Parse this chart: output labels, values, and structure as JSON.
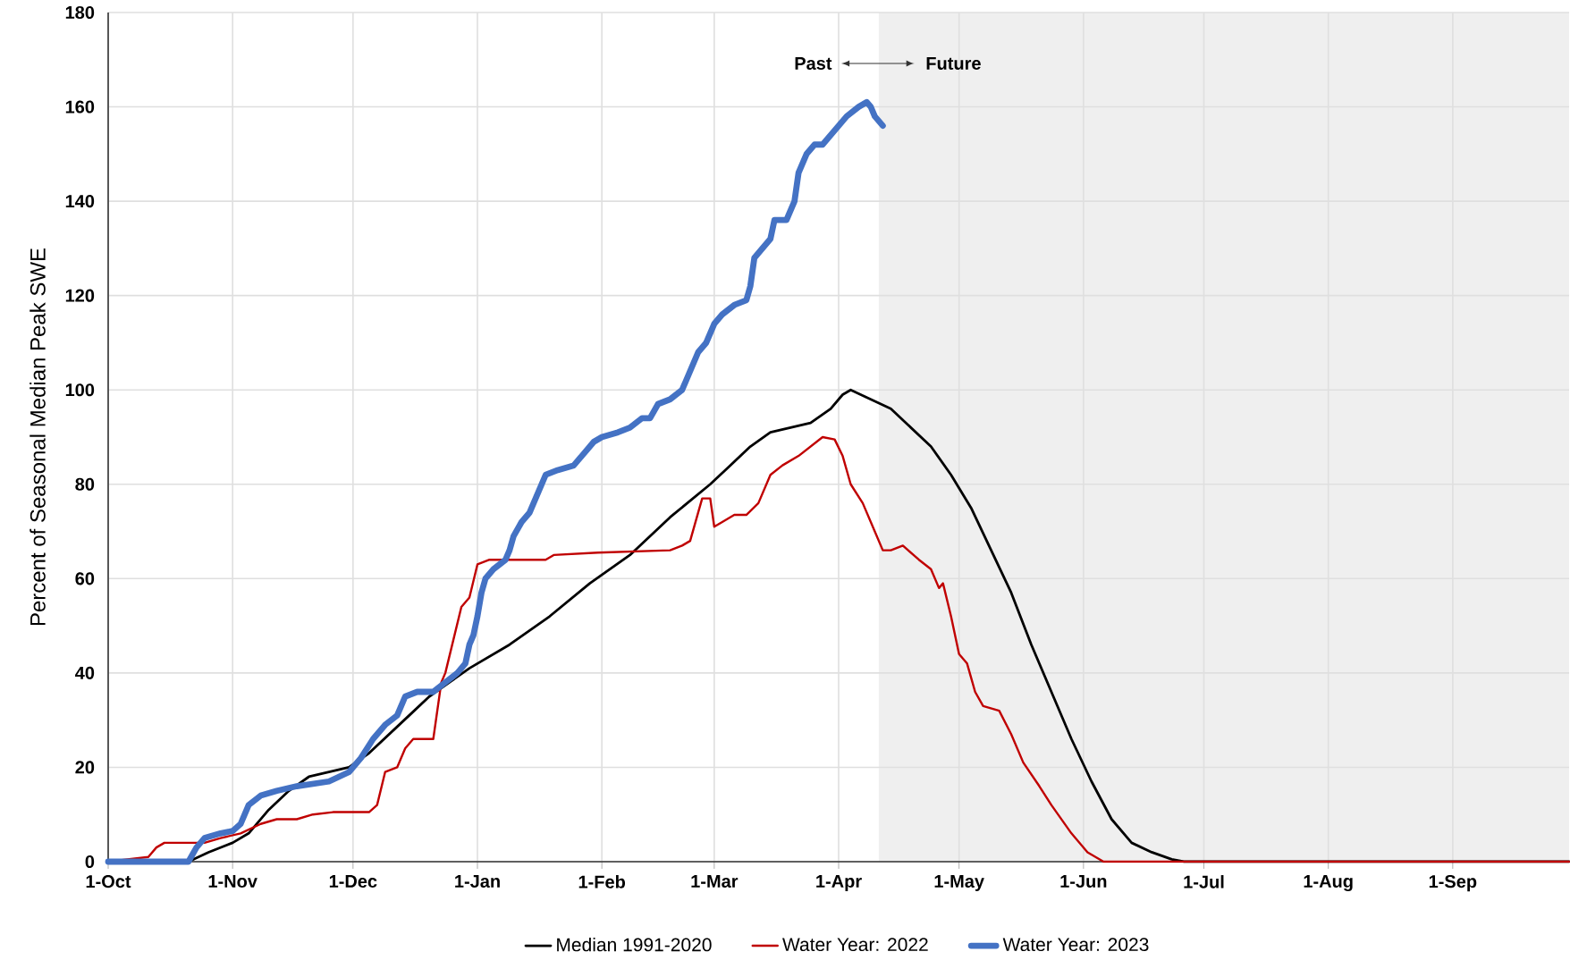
{
  "chart_data": {
    "type": "line",
    "ylabel": "Percent of Seasonal Median Peak SWE",
    "xlim": [
      "2022-10-01",
      "2023-09-30"
    ],
    "ylim": [
      0,
      180
    ],
    "xticks": [
      {
        "value": "2022-10-01",
        "label": "1-Oct"
      },
      {
        "value": "2022-11-01",
        "label": "1-Nov"
      },
      {
        "value": "2022-12-01",
        "label": "1-Dec"
      },
      {
        "value": "2023-01-01",
        "label": "1-Jan"
      },
      {
        "value": "2023-02-01",
        "label": "1-Feb"
      },
      {
        "value": "2023-03-01",
        "label": "1-Mar"
      },
      {
        "value": "2023-04-01",
        "label": "1-Apr"
      },
      {
        "value": "2023-05-01",
        "label": "1-May"
      },
      {
        "value": "2023-06-01",
        "label": "1-Jun"
      },
      {
        "value": "2023-07-01",
        "label": "1-Jul"
      },
      {
        "value": "2023-08-01",
        "label": "1-Aug"
      },
      {
        "value": "2023-09-01",
        "label": "1-Sep"
      }
    ],
    "yticks": [
      0,
      20,
      40,
      60,
      80,
      100,
      120,
      140,
      160,
      180
    ],
    "grid": true,
    "legend": "bottom",
    "marker": "none",
    "line_style": "solid",
    "bands": [
      {
        "axis": "x",
        "from": "2023-04-11",
        "to": "2023-09-30",
        "color": "#efefef"
      }
    ],
    "annotations": [
      "Past",
      "Future"
    ],
    "series": [
      {
        "name": "Median 1991-2020",
        "color": "#000000",
        "x": [
          "2022-10-01",
          "2022-10-21",
          "2022-10-26",
          "2022-11-01",
          "2022-11-05",
          "2022-11-10",
          "2022-11-15",
          "2022-11-20",
          "2022-11-25",
          "2022-11-30",
          "2022-12-05",
          "2022-12-10",
          "2022-12-15",
          "2022-12-20",
          "2022-12-25",
          "2022-12-30",
          "2023-01-01",
          "2023-01-09",
          "2023-01-19",
          "2023-01-29",
          "2023-02-08",
          "2023-02-18",
          "2023-02-28",
          "2023-03-05",
          "2023-03-10",
          "2023-03-15",
          "2023-03-20",
          "2023-03-25",
          "2023-03-30",
          "2023-04-02",
          "2023-04-04",
          "2023-04-09",
          "2023-04-14",
          "2023-04-19",
          "2023-04-24",
          "2023-04-29",
          "2023-05-04",
          "2023-05-09",
          "2023-05-14",
          "2023-05-19",
          "2023-05-24",
          "2023-05-29",
          "2023-06-03",
          "2023-06-08",
          "2023-06-13",
          "2023-06-18",
          "2023-06-23",
          "2023-06-26",
          "2023-09-30"
        ],
        "values": [
          0,
          0,
          2,
          4,
          6,
          11,
          15,
          18,
          19,
          20,
          23,
          27,
          31,
          35,
          38,
          41,
          42,
          46,
          52,
          59,
          65,
          73,
          80,
          84,
          88,
          91,
          92,
          93,
          96,
          99,
          100,
          98,
          96,
          92,
          88,
          82,
          75,
          66,
          57,
          46,
          36,
          26,
          17,
          9,
          4,
          2,
          0.5,
          0,
          0
        ]
      },
      {
        "name": "Water Year: 2022",
        "color": "#c00000",
        "x": [
          "2022-10-01",
          "2022-10-11",
          "2022-10-13",
          "2022-10-15",
          "2022-10-19",
          "2022-10-25",
          "2022-10-29",
          "2022-11-03",
          "2022-11-08",
          "2022-11-12",
          "2022-11-17",
          "2022-11-21",
          "2022-11-26",
          "2022-12-05",
          "2022-12-07",
          "2022-12-09",
          "2022-12-12",
          "2022-12-14",
          "2022-12-16",
          "2022-12-21",
          "2022-12-23",
          "2022-12-24",
          "2022-12-28",
          "2022-12-30",
          "2023-01-01",
          "2023-01-04",
          "2023-01-13",
          "2023-01-18",
          "2023-01-20",
          "2023-01-31",
          "2023-02-18",
          "2023-02-21",
          "2023-02-23",
          "2023-02-25",
          "2023-02-26",
          "2023-02-28",
          "2023-03-01",
          "2023-03-03",
          "2023-03-06",
          "2023-03-09",
          "2023-03-12",
          "2023-03-15",
          "2023-03-18",
          "2023-03-22",
          "2023-03-25",
          "2023-03-28",
          "2023-03-31",
          "2023-04-02",
          "2023-04-04",
          "2023-04-07",
          "2023-04-10",
          "2023-04-12",
          "2023-04-14",
          "2023-04-17",
          "2023-04-21",
          "2023-04-24",
          "2023-04-26",
          "2023-04-27",
          "2023-04-29",
          "2023-05-01",
          "2023-05-03",
          "2023-05-05",
          "2023-05-07",
          "2023-05-11",
          "2023-05-14",
          "2023-05-17",
          "2023-05-21",
          "2023-05-24",
          "2023-05-29",
          "2023-06-02",
          "2023-06-06",
          "2023-09-30"
        ],
        "values": [
          0,
          1,
          3,
          4,
          4,
          4,
          5,
          6,
          8,
          9,
          9,
          10,
          10.5,
          10.5,
          12,
          19,
          20,
          24,
          26,
          26,
          38,
          40,
          54,
          56,
          63,
          64,
          64,
          64,
          65,
          65.5,
          66,
          67,
          68,
          74,
          77,
          77,
          71,
          72,
          73.5,
          73.5,
          76,
          82,
          84,
          86,
          88,
          90,
          89.5,
          86,
          80,
          76,
          70,
          66,
          66,
          67,
          64,
          62,
          58,
          59,
          52,
          44,
          42,
          36,
          33,
          32,
          27,
          21,
          16,
          12,
          6,
          2,
          0,
          0
        ]
      },
      {
        "name": "Water Year: 2023",
        "color": "#4472c4",
        "x": [
          "2022-10-01",
          "2022-10-21",
          "2022-10-23",
          "2022-10-25",
          "2022-10-29",
          "2022-11-01",
          "2022-11-03",
          "2022-11-05",
          "2022-11-08",
          "2022-11-12",
          "2022-11-17",
          "2022-11-25",
          "2022-11-30",
          "2022-12-03",
          "2022-12-06",
          "2022-12-09",
          "2022-12-12",
          "2022-12-14",
          "2022-12-17",
          "2022-12-21",
          "2022-12-24",
          "2022-12-27",
          "2022-12-29",
          "2022-12-30",
          "2022-12-31",
          "2023-01-01",
          "2023-01-02",
          "2023-01-03",
          "2023-01-05",
          "2023-01-08",
          "2023-01-09",
          "2023-01-10",
          "2023-01-12",
          "2023-01-14",
          "2023-01-16",
          "2023-01-18",
          "2023-01-21",
          "2023-01-25",
          "2023-01-27",
          "2023-01-30",
          "2023-02-01",
          "2023-02-05",
          "2023-02-08",
          "2023-02-11",
          "2023-02-13",
          "2023-02-15",
          "2023-02-18",
          "2023-02-21",
          "2023-02-23",
          "2023-02-25",
          "2023-02-27",
          "2023-03-01",
          "2023-03-03",
          "2023-03-06",
          "2023-03-09",
          "2023-03-10",
          "2023-03-11",
          "2023-03-13",
          "2023-03-15",
          "2023-03-16",
          "2023-03-19",
          "2023-03-21",
          "2023-03-22",
          "2023-03-24",
          "2023-03-26",
          "2023-03-28",
          "2023-03-30",
          "2023-04-01",
          "2023-04-03",
          "2023-04-06",
          "2023-04-08",
          "2023-04-09",
          "2023-04-10",
          "2023-04-12"
        ],
        "values": [
          0,
          0,
          3,
          5,
          6,
          6.5,
          8,
          12,
          14,
          15,
          16,
          17,
          19,
          22,
          26,
          29,
          31,
          35,
          36,
          36,
          38,
          40,
          42,
          46,
          48,
          52,
          57,
          60,
          62,
          64,
          66,
          69,
          72,
          74,
          78,
          82,
          83,
          84,
          86,
          89,
          90,
          91,
          92,
          94,
          94,
          97,
          98,
          100,
          104,
          108,
          110,
          114,
          116,
          118,
          119,
          122,
          128,
          130,
          132,
          136,
          136,
          140,
          146,
          150,
          152,
          152,
          154,
          156,
          158,
          160,
          161,
          160,
          158,
          156
        ]
      }
    ]
  }
}
